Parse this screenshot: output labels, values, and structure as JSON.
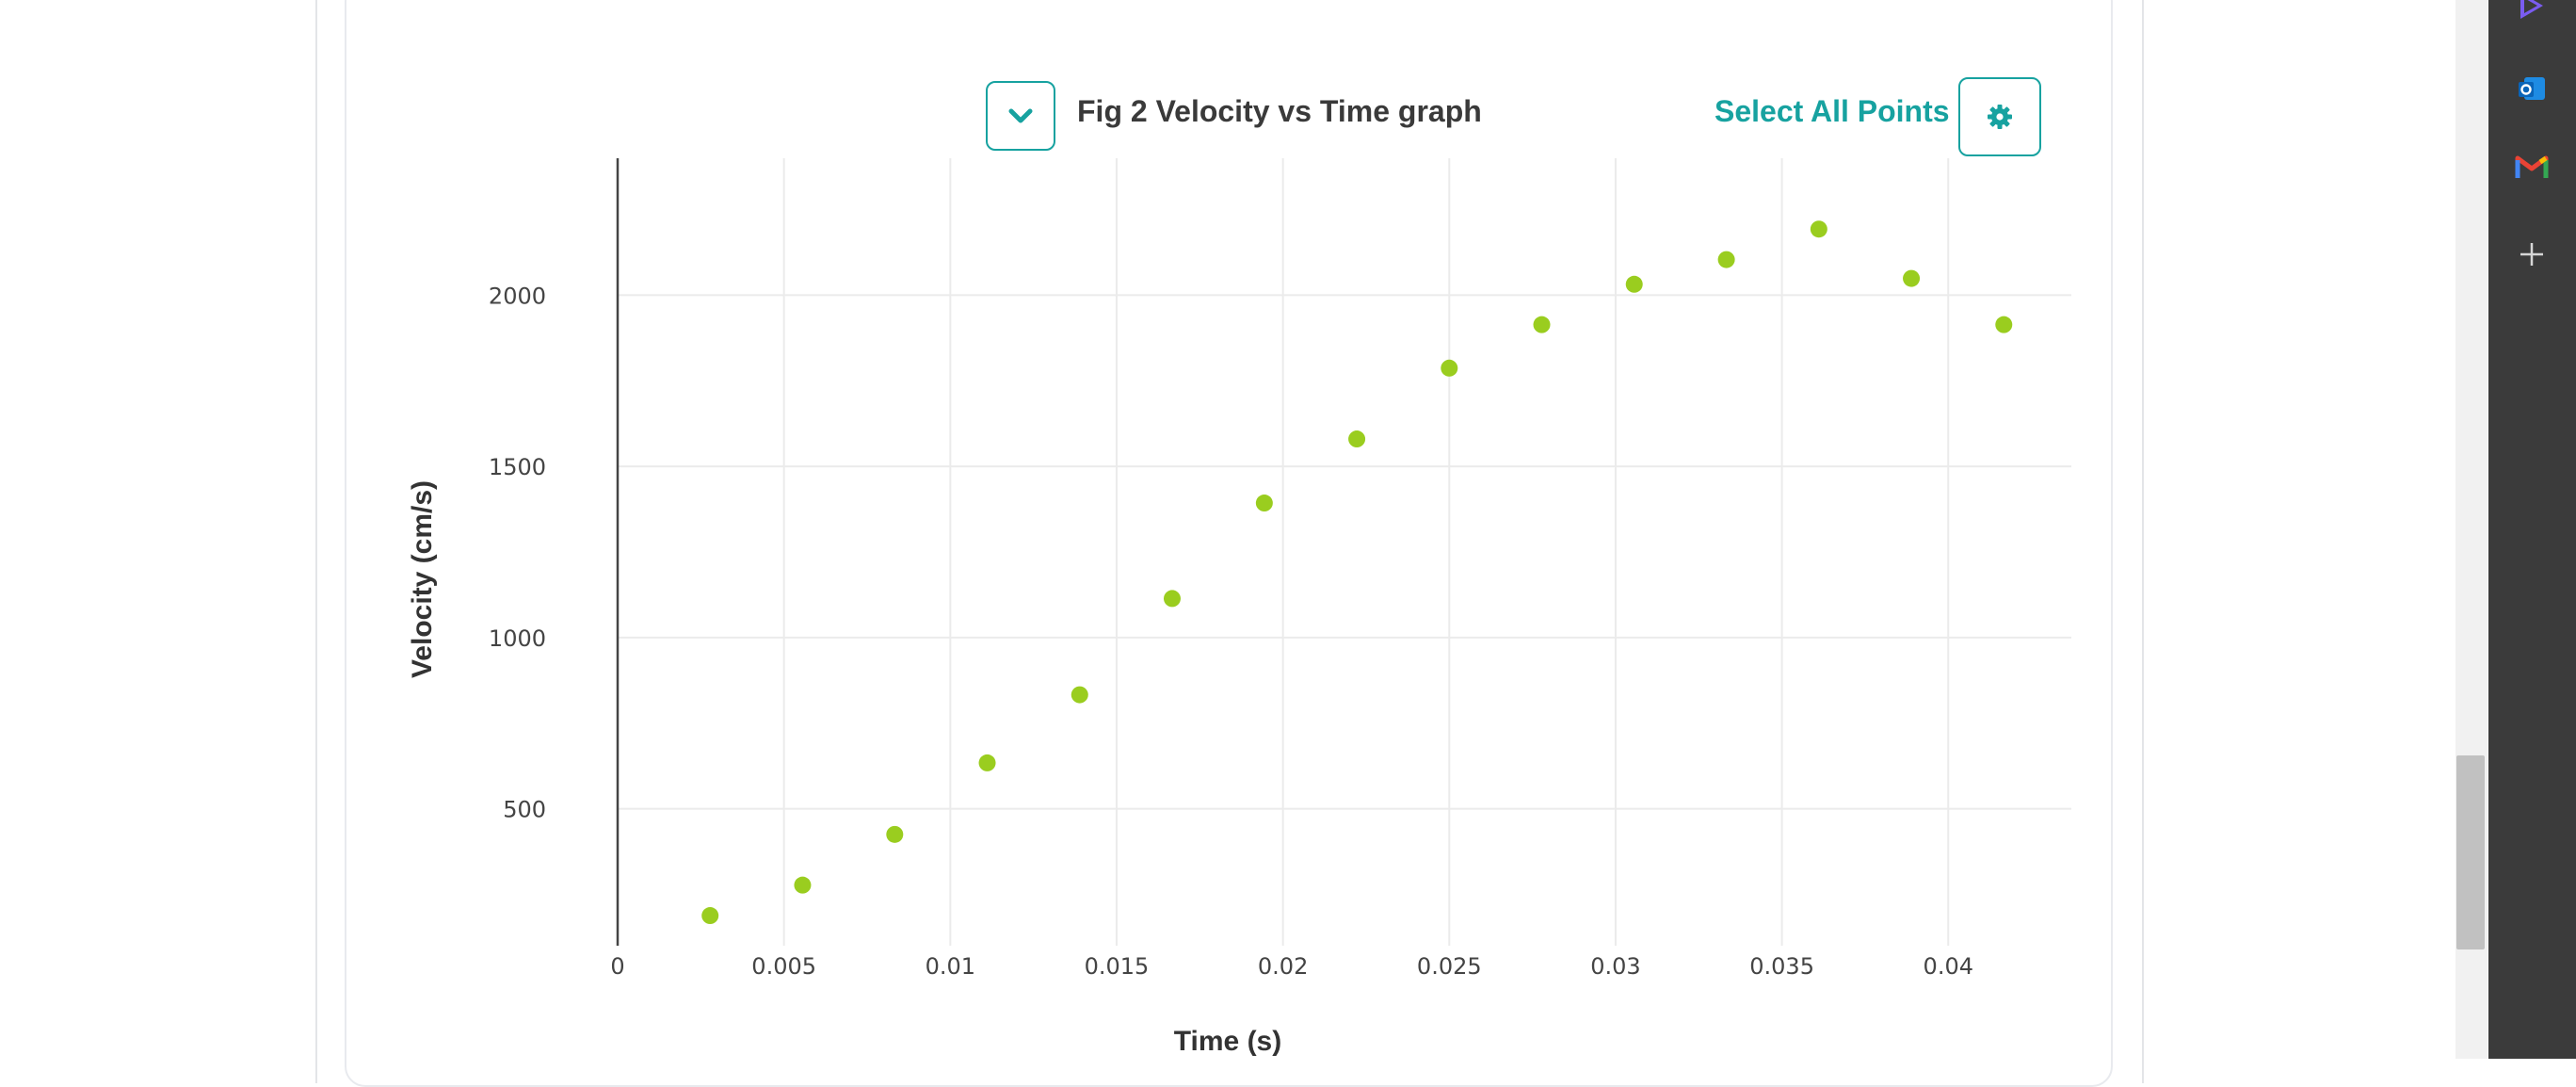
{
  "header": {
    "chart_title": "Fig 2 Velocity vs Time graph",
    "select_all_label": "Select All Points",
    "dropdown_icon": "chevron-down-icon",
    "settings_icon": "gear-icon"
  },
  "colors": {
    "accent": "#17a2a0",
    "point": "#9acd1f",
    "grid": "#ebebeb",
    "sidebar": "#3b3b3b"
  },
  "chart_data": {
    "type": "scatter",
    "title": "Fig 2 Velocity vs Time graph",
    "xlabel": "Time (s)",
    "ylabel": "Velocity (cm/s)",
    "xlim": [
      0,
      0.0437
    ],
    "ylim": [
      100,
      2400
    ],
    "x_ticks": [
      0,
      0.005,
      0.01,
      0.015,
      0.02,
      0.025,
      0.03,
      0.035,
      0.04
    ],
    "x_tick_labels": [
      "0",
      "0.005",
      "0.01",
      "0.015",
      "0.02",
      "0.025",
      "0.03",
      "0.035",
      "0.04"
    ],
    "y_ticks": [
      500,
      1000,
      1500,
      2000
    ],
    "y_tick_labels": [
      "500",
      "1000",
      "1500",
      "2000"
    ],
    "grid": true,
    "series": [
      {
        "x": [
          0.00278,
          0.00556,
          0.00833,
          0.01111,
          0.01389,
          0.01667,
          0.01944,
          0.02222,
          0.025,
          0.02778,
          0.03056,
          0.03333,
          0.03611,
          0.03889,
          0.04167
        ],
        "y": [
          188,
          277,
          425,
          634,
          833,
          1114,
          1393,
          1580,
          1787,
          1914,
          2032,
          2104,
          2193,
          2049,
          1914
        ]
      }
    ]
  },
  "sidebar": {
    "icons": [
      "copilot-icon",
      "outlook-icon",
      "gmail-icon",
      "add-icon"
    ]
  }
}
